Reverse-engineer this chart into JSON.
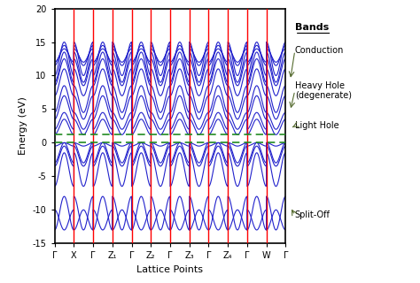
{
  "title": "",
  "xlabel": "Lattice Points",
  "ylabel": "Energy (eV)",
  "ylim": [
    -15,
    20
  ],
  "xlim": [
    0,
    12
  ],
  "yticks": [
    -15,
    -10,
    -5,
    0,
    5,
    10,
    15,
    20
  ],
  "xtick_positions": [
    0,
    1,
    2,
    3,
    4,
    5,
    6,
    7,
    8,
    9,
    10,
    11,
    12
  ],
  "xtick_labels": [
    "Γ",
    "X",
    "Γ",
    "Z₁",
    "Γ",
    "Z₂",
    "Γ",
    "Z₃",
    "Γ",
    "Z₄",
    "Γ",
    "W",
    "Γ"
  ],
  "vline_positions": [
    1,
    2,
    3,
    4,
    5,
    6,
    7,
    8,
    9,
    10,
    11
  ],
  "vline_color": "#ff0000",
  "band_color": "#2222cc",
  "dashed_line_color": "#228B22",
  "dashed_line_y1": 1.2,
  "dashed_line_y2": 0.0,
  "legend_title": "Bands",
  "legend_labels": [
    "Conduction",
    "Heavy Hole\n(degenerate)",
    "Light Hole",
    "Split-Off"
  ],
  "legend_arrow_color": "#556B2F",
  "background_color": "#ffffff",
  "n_points": 200,
  "segment_boundaries": [
    0,
    1,
    2,
    3,
    4,
    5,
    6,
    7,
    8,
    9,
    10,
    11,
    12
  ]
}
